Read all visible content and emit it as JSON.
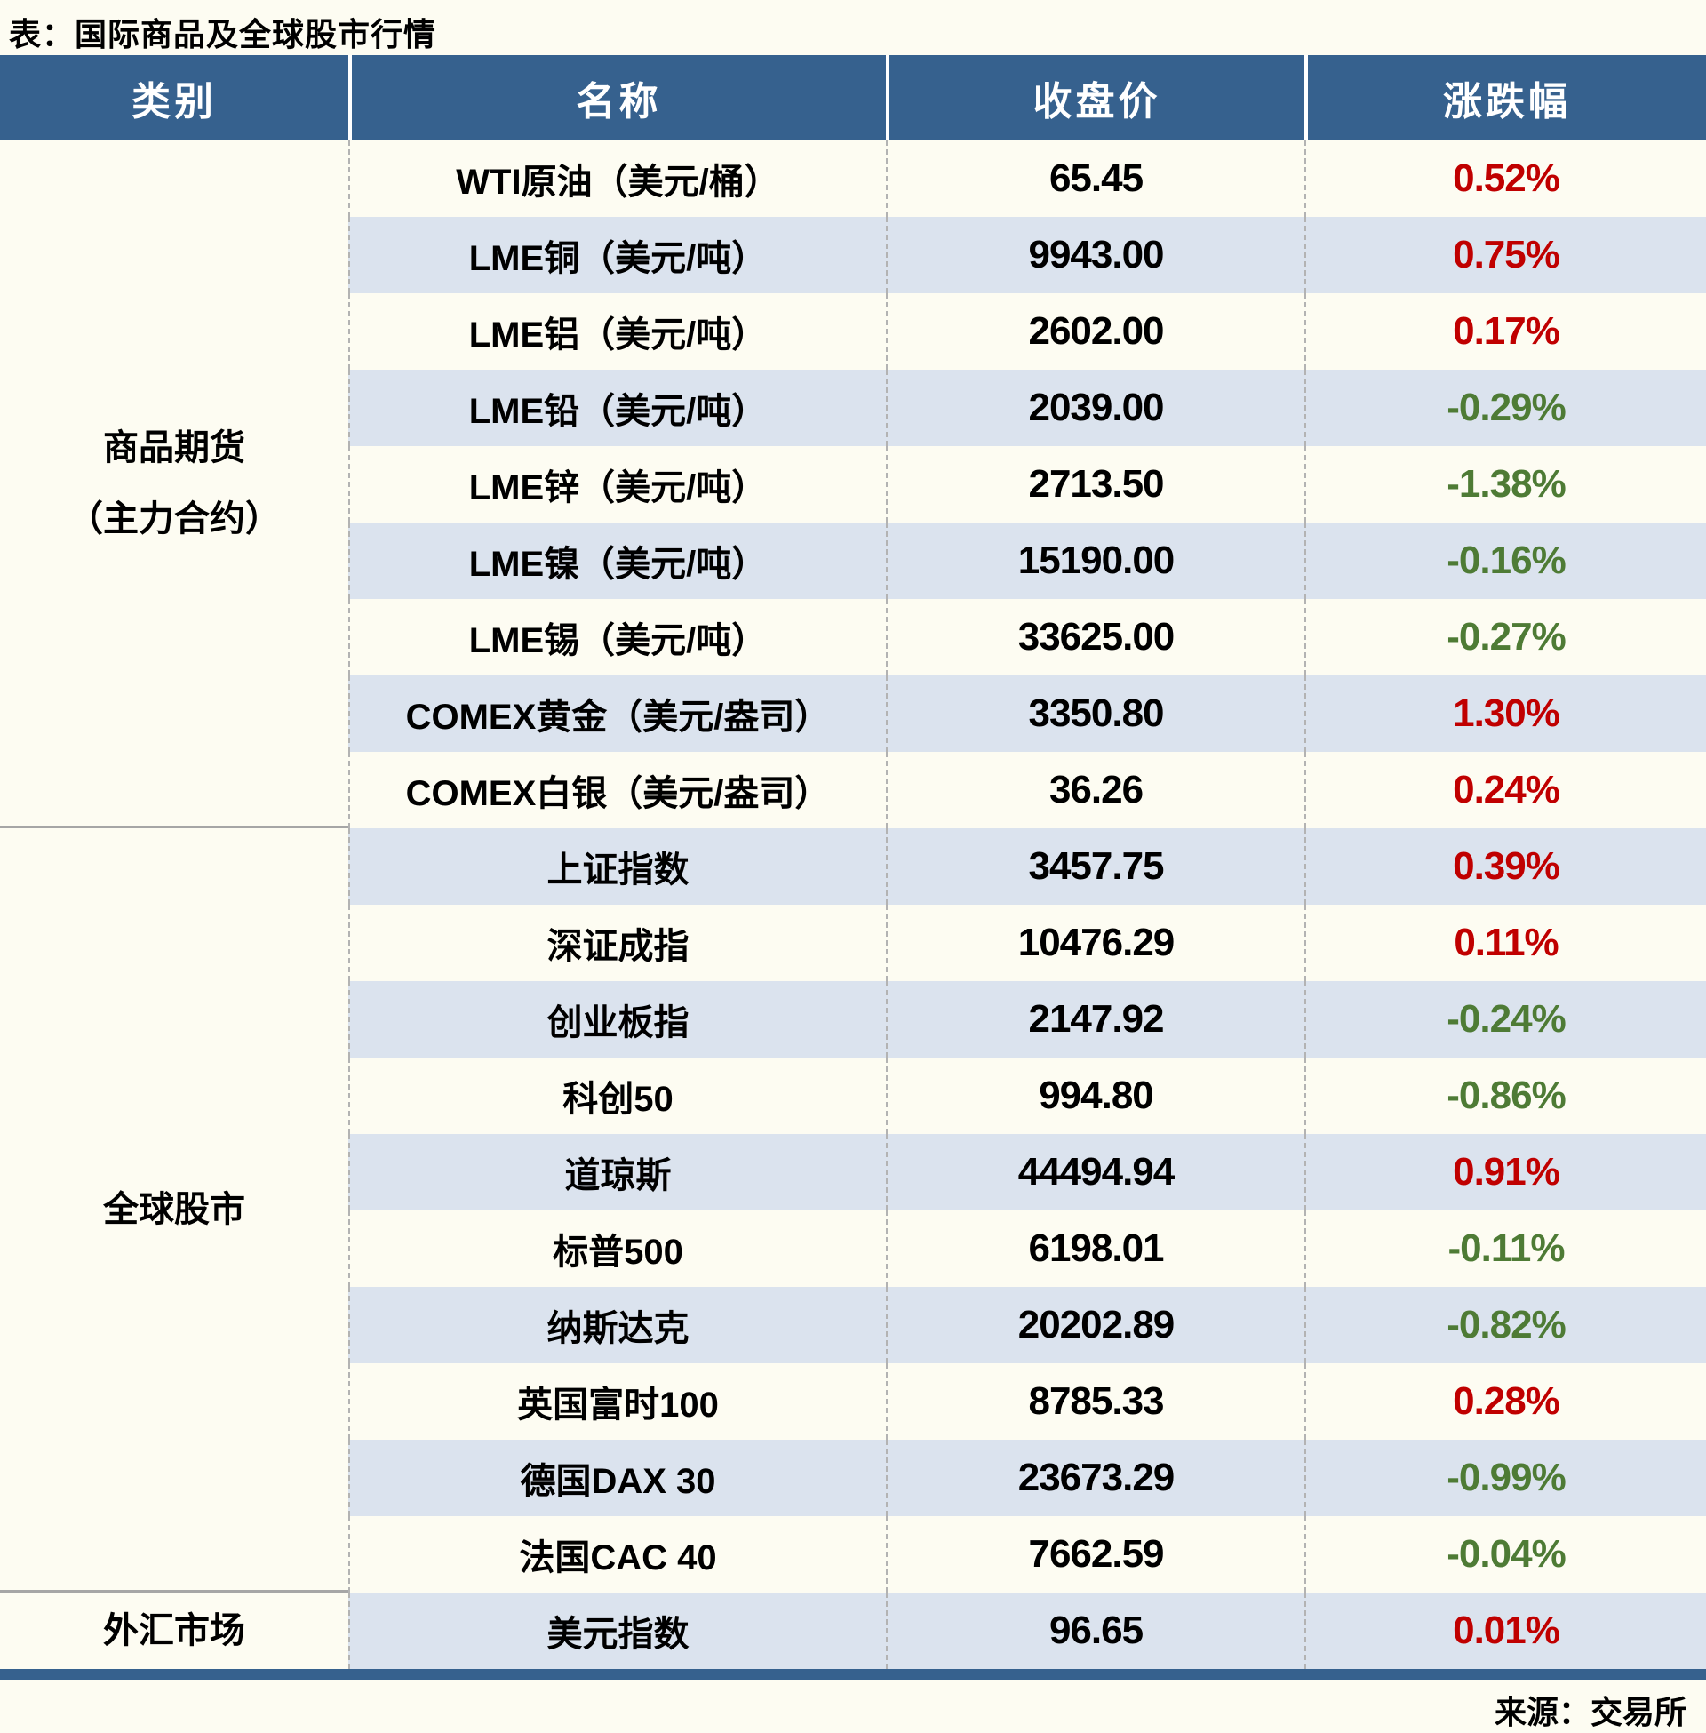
{
  "page": {
    "title": "表：国际商品及全球股市行情",
    "source": "来源：交易所"
  },
  "colors": {
    "header_bg": "#36618E",
    "bottom_bar": "#36618E",
    "row_bg": "#FDFCF2",
    "row_alt_bg": "#DBE3EE",
    "up": "#C00000",
    "down": "#4E7B35"
  },
  "table": {
    "headers": [
      "类别",
      "名称",
      "收盘价",
      "涨跌幅"
    ],
    "sections": [
      {
        "category_lines": [
          "商品期货",
          "（主力合约）"
        ],
        "rows": [
          {
            "name": "WTI原油（美元/桶）",
            "close": "65.45",
            "change": "0.52%",
            "direction": "up"
          },
          {
            "name": "LME铜（美元/吨）",
            "close": "9943.00",
            "change": "0.75%",
            "direction": "up"
          },
          {
            "name": "LME铝（美元/吨）",
            "close": "2602.00",
            "change": "0.17%",
            "direction": "up"
          },
          {
            "name": "LME铅（美元/吨）",
            "close": "2039.00",
            "change": "-0.29%",
            "direction": "down"
          },
          {
            "name": "LME锌（美元/吨）",
            "close": "2713.50",
            "change": "-1.38%",
            "direction": "down"
          },
          {
            "name": "LME镍（美元/吨）",
            "close": "15190.00",
            "change": "-0.16%",
            "direction": "down"
          },
          {
            "name": "LME锡（美元/吨）",
            "close": "33625.00",
            "change": "-0.27%",
            "direction": "down"
          },
          {
            "name": "COMEX黄金（美元/盎司）",
            "close": "3350.80",
            "change": "1.30%",
            "direction": "up"
          },
          {
            "name": "COMEX白银（美元/盎司）",
            "close": "36.26",
            "change": "0.24%",
            "direction": "up"
          }
        ]
      },
      {
        "category_lines": [
          "全球股市"
        ],
        "rows": [
          {
            "name": "上证指数",
            "close": "3457.75",
            "change": "0.39%",
            "direction": "up"
          },
          {
            "name": "深证成指",
            "close": "10476.29",
            "change": "0.11%",
            "direction": "up"
          },
          {
            "name": "创业板指",
            "close": "2147.92",
            "change": "-0.24%",
            "direction": "down"
          },
          {
            "name": "科创50",
            "close": "994.80",
            "change": "-0.86%",
            "direction": "down"
          },
          {
            "name": "道琼斯",
            "close": "44494.94",
            "change": "0.91%",
            "direction": "up"
          },
          {
            "name": "标普500",
            "close": "6198.01",
            "change": "-0.11%",
            "direction": "down"
          },
          {
            "name": "纳斯达克",
            "close": "20202.89",
            "change": "-0.82%",
            "direction": "down"
          },
          {
            "name": "英国富时100",
            "close": "8785.33",
            "change": "0.28%",
            "direction": "up"
          },
          {
            "name": "德国DAX 30",
            "close": "23673.29",
            "change": "-0.99%",
            "direction": "down"
          },
          {
            "name": "法国CAC 40",
            "close": "7662.59",
            "change": "-0.04%",
            "direction": "down"
          }
        ]
      },
      {
        "category_lines": [
          "外汇市场"
        ],
        "rows": [
          {
            "name": "美元指数",
            "close": "96.65",
            "change": "0.01%",
            "direction": "up"
          }
        ]
      }
    ]
  },
  "chart_data": {
    "type": "table",
    "title": "表：国际商品及全球股市行情",
    "source": "来源：交易所",
    "columns": [
      "类别",
      "名称",
      "收盘价",
      "涨跌幅"
    ],
    "rows": [
      [
        "商品期货（主力合约）",
        "WTI原油（美元/桶）",
        65.45,
        "0.52%"
      ],
      [
        "商品期货（主力合约）",
        "LME铜（美元/吨）",
        9943.0,
        "0.75%"
      ],
      [
        "商品期货（主力合约）",
        "LME铝（美元/吨）",
        2602.0,
        "0.17%"
      ],
      [
        "商品期货（主力合约）",
        "LME铅（美元/吨）",
        2039.0,
        "-0.29%"
      ],
      [
        "商品期货（主力合约）",
        "LME锌（美元/吨）",
        2713.5,
        "-1.38%"
      ],
      [
        "商品期货（主力合约）",
        "LME镍（美元/吨）",
        15190.0,
        "-0.16%"
      ],
      [
        "商品期货（主力合约）",
        "LME锡（美元/吨）",
        33625.0,
        "-0.27%"
      ],
      [
        "商品期货（主力合约）",
        "COMEX黄金（美元/盎司）",
        3350.8,
        "1.30%"
      ],
      [
        "商品期货（主力合约）",
        "COMEX白银（美元/盎司）",
        36.26,
        "0.24%"
      ],
      [
        "全球股市",
        "上证指数",
        3457.75,
        "0.39%"
      ],
      [
        "全球股市",
        "深证成指",
        10476.29,
        "0.11%"
      ],
      [
        "全球股市",
        "创业板指",
        2147.92,
        "-0.24%"
      ],
      [
        "全球股市",
        "科创50",
        994.8,
        "-0.86%"
      ],
      [
        "全球股市",
        "道琼斯",
        44494.94,
        "0.91%"
      ],
      [
        "全球股市",
        "标普500",
        6198.01,
        "-0.11%"
      ],
      [
        "全球股市",
        "纳斯达克",
        20202.89,
        "-0.82%"
      ],
      [
        "全球股市",
        "英国富时100",
        8785.33,
        "0.28%"
      ],
      [
        "全球股市",
        "德国DAX 30",
        23673.29,
        "-0.99%"
      ],
      [
        "全球股市",
        "法国CAC 40",
        7662.59,
        "-0.04%"
      ],
      [
        "外汇市场",
        "美元指数",
        96.65,
        "0.01%"
      ]
    ],
    "legend": {
      "red": "上涨 (up)",
      "green": "下跌 (down)"
    }
  }
}
